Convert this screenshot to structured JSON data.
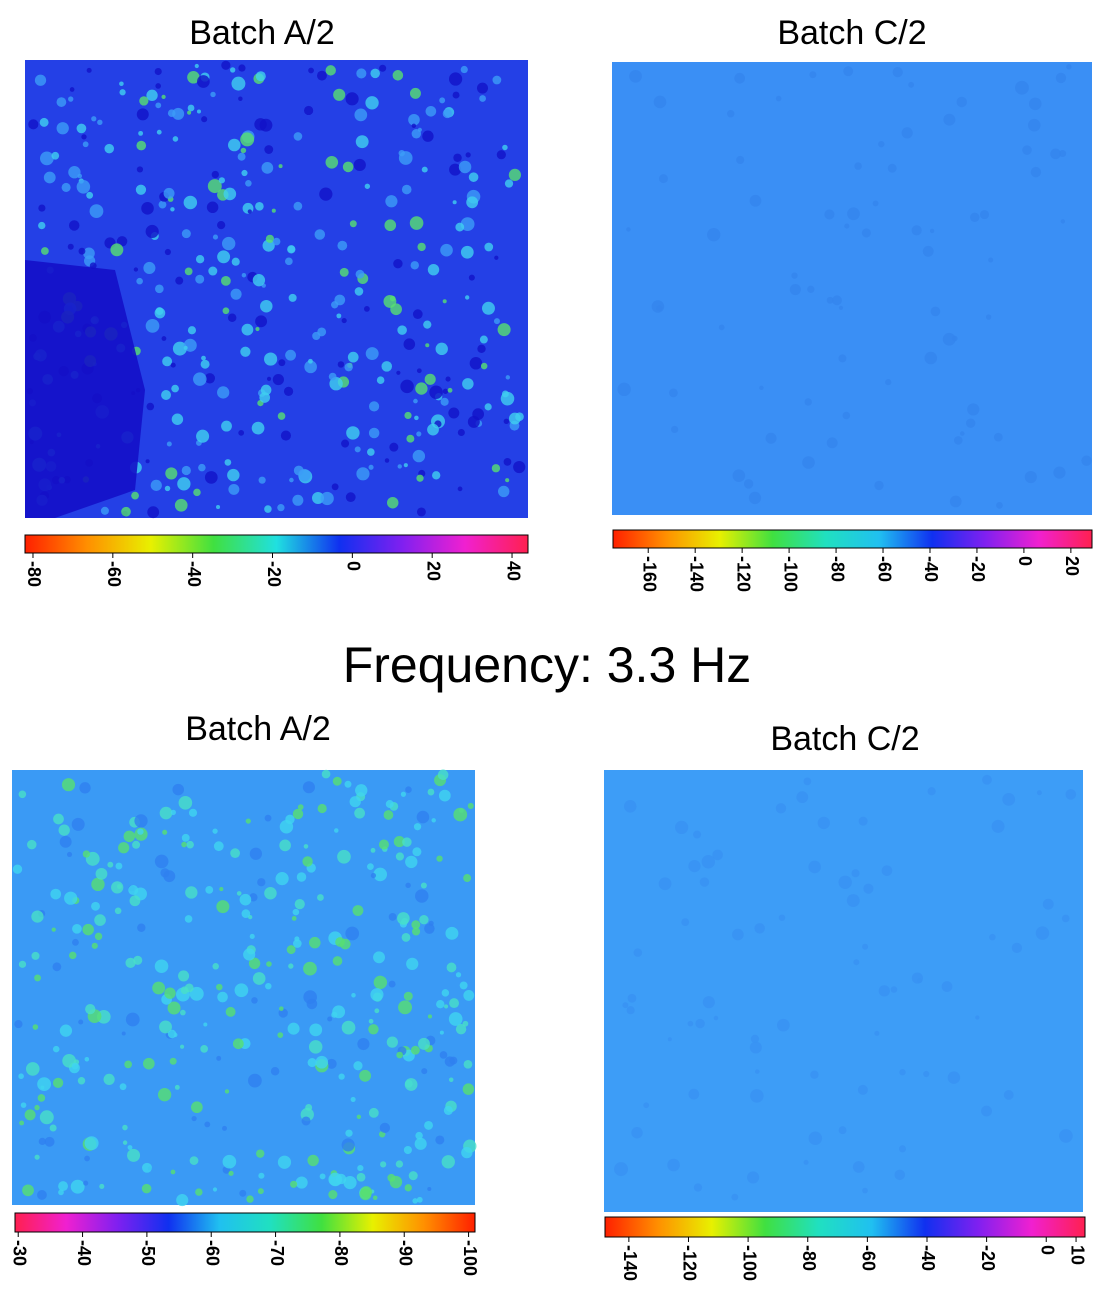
{
  "heading": "Frequency: 3.3 Hz",
  "panels": [
    {
      "title": "Batch A/2",
      "heatmap": {
        "base": "#2440e6",
        "spots": [
          "#3c9cf8",
          "#1212c8",
          "#40d0f0",
          "#58e070"
        ]
      },
      "colorbar": {
        "lim": [
          -82,
          44
        ],
        "ticks": [
          -80,
          -60,
          -40,
          -20,
          0,
          20,
          40
        ],
        "colors": [
          "#ff2000",
          "#ff9000",
          "#e8f000",
          "#40e040",
          "#20e0e0",
          "#1030f0",
          "#8020f0",
          "#f020d0",
          "#ff2050"
        ]
      }
    },
    {
      "title": "Batch C/2",
      "heatmap": {
        "base": "#3a8ff5",
        "spots": [
          "#3585ee"
        ]
      },
      "colorbar": {
        "lim": [
          -175,
          29
        ],
        "ticks": [
          -160,
          -140,
          -120,
          -100,
          -80,
          -60,
          -40,
          -20,
          0,
          20
        ],
        "colors": [
          "#ff2000",
          "#ff9000",
          "#e8f000",
          "#40e040",
          "#20e0c0",
          "#20c0f0",
          "#1030f0",
          "#8020f0",
          "#f020d0",
          "#ff2050"
        ]
      }
    },
    {
      "title": "Batch A/2",
      "heatmap": {
        "base": "#3a9af5",
        "spots": [
          "#40d4f0",
          "#48e0c8",
          "#58e070",
          "#3080f0"
        ]
      },
      "colorbar": {
        "lim": [
          -29.5,
          -101
        ],
        "ticks": [
          -30,
          -40,
          -50,
          -60,
          -70,
          -80,
          -90,
          -100
        ],
        "colors": [
          "#ff2050",
          "#f020d0",
          "#8020f0",
          "#1030f0",
          "#20c0f0",
          "#20e0c0",
          "#40e040",
          "#e8f000",
          "#ff9000",
          "#ff2000"
        ]
      }
    },
    {
      "title": "Batch C/2",
      "heatmap": {
        "base": "#3d9df7",
        "spots": [
          "#3892f2"
        ]
      },
      "colorbar": {
        "lim": [
          -148,
          13
        ],
        "ticks": [
          -140,
          -120,
          -100,
          -80,
          -60,
          -40,
          -20,
          0,
          10
        ],
        "colors": [
          "#ff2000",
          "#ff9000",
          "#e8f000",
          "#40e040",
          "#20e0c0",
          "#20c0f0",
          "#1030f0",
          "#8020f0",
          "#f020d0",
          "#ff2050"
        ]
      }
    }
  ]
}
